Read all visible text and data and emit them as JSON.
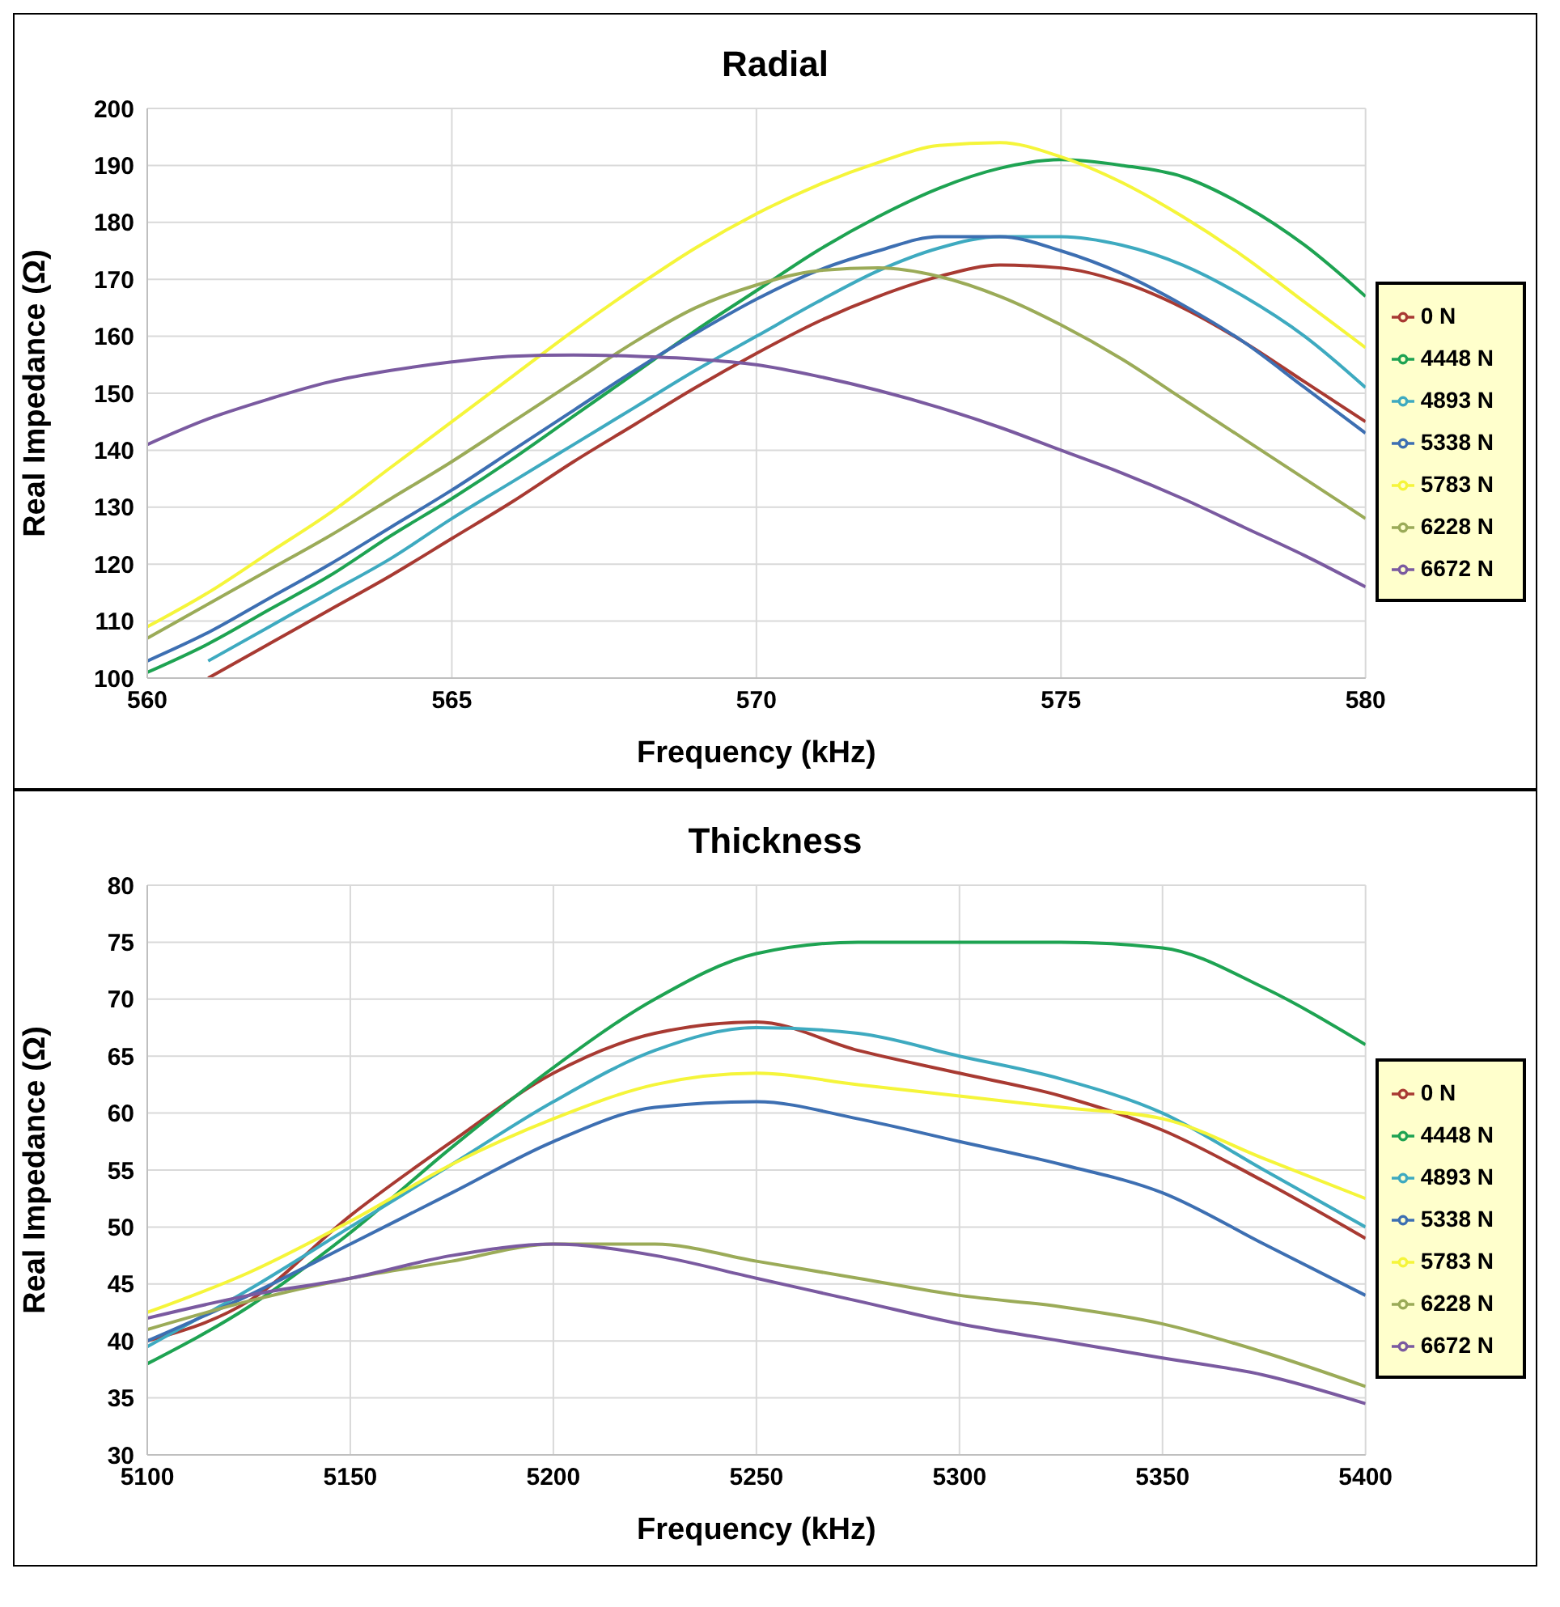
{
  "chart_data": [
    {
      "type": "line",
      "title": "Radial",
      "xlabel": "Frequency (kHz)",
      "ylabel": "Real Impedance (Ω)",
      "x": [
        560,
        561,
        562,
        563,
        564,
        565,
        566,
        567,
        568,
        569,
        570,
        571,
        572,
        573,
        574,
        575,
        576,
        577,
        578,
        579,
        580
      ],
      "xlim": [
        560,
        580
      ],
      "xticks": [
        560,
        565,
        570,
        575,
        580
      ],
      "ylim": [
        100,
        200
      ],
      "yticks": [
        100,
        110,
        120,
        130,
        140,
        150,
        160,
        170,
        180,
        190,
        200
      ],
      "grid": true,
      "legend": "right",
      "marker": "none",
      "line_style": "solid",
      "series": [
        {
          "name": "0 N",
          "color": "#a83a32",
          "values": [
            null,
            100,
            106,
            112,
            118,
            124.5,
            131,
            138,
            144.5,
            151,
            157,
            162.5,
            167,
            170.5,
            172.5,
            172,
            169.5,
            165,
            159,
            152,
            145
          ]
        },
        {
          "name": "4448 N",
          "color": "#1ea352",
          "values": [
            101,
            106,
            112,
            118,
            125,
            131.5,
            138.5,
            146,
            153.5,
            161,
            168,
            175,
            181,
            186,
            189.5,
            191,
            190,
            188,
            183,
            176,
            167
          ]
        },
        {
          "name": "4893 N",
          "color": "#3eaac0",
          "values": [
            null,
            103,
            109,
            115,
            121,
            128,
            134.5,
            141,
            147.5,
            154,
            160,
            166,
            171.5,
            175.5,
            177.5,
            177.5,
            176,
            172.5,
            167,
            160,
            151
          ]
        },
        {
          "name": "5338 N",
          "color": "#3d6fb2",
          "values": [
            103,
            108,
            114,
            120,
            126.5,
            133,
            140,
            147,
            154,
            160.5,
            166.5,
            171.5,
            175,
            177.5,
            177.5,
            175,
            171,
            165.5,
            159,
            151,
            143
          ]
        },
        {
          "name": "5783 N",
          "color": "#f5f53a",
          "values": [
            109,
            115,
            122,
            129,
            137,
            145,
            153,
            161,
            168.5,
            175.5,
            181.5,
            186.5,
            190.5,
            193.5,
            194,
            191.5,
            187,
            181,
            174,
            166,
            158
          ]
        },
        {
          "name": "6228 N",
          "color": "#9bab58",
          "values": [
            107,
            113,
            119,
            125,
            131.5,
            138,
            145,
            152,
            159,
            165,
            169,
            171.5,
            172,
            170.5,
            167,
            162,
            156,
            149,
            142,
            135,
            128
          ]
        },
        {
          "name": "6672 N",
          "color": "#7a5aa0",
          "values": [
            141,
            145.5,
            149,
            152,
            154,
            155.5,
            156.5,
            156.7,
            156.5,
            156,
            155,
            153,
            150.5,
            147.5,
            144,
            140,
            136,
            131.5,
            126.5,
            121.5,
            116
          ]
        }
      ]
    },
    {
      "type": "line",
      "title": "Thickness",
      "xlabel": "Frequency (kHz)",
      "ylabel": "Real Impedance (Ω)",
      "x": [
        5100,
        5125,
        5150,
        5175,
        5200,
        5225,
        5250,
        5275,
        5300,
        5325,
        5350,
        5375,
        5400
      ],
      "xlim": [
        5100,
        5400
      ],
      "xticks": [
        5100,
        5150,
        5200,
        5250,
        5300,
        5350,
        5400
      ],
      "ylim": [
        30,
        80
      ],
      "yticks": [
        30,
        35,
        40,
        45,
        50,
        55,
        60,
        65,
        70,
        75,
        80
      ],
      "grid": true,
      "legend": "right",
      "marker": "none",
      "line_style": "solid",
      "series": [
        {
          "name": "0 N",
          "color": "#a83a32",
          "values": [
            40,
            43.5,
            51,
            57.5,
            63.5,
            67,
            68,
            65.5,
            63.5,
            61.5,
            58.5,
            54,
            49
          ]
        },
        {
          "name": "4448 N",
          "color": "#1ea352",
          "values": [
            38,
            43,
            49.5,
            57,
            64,
            70,
            74,
            75,
            75,
            75,
            74.5,
            71,
            66
          ]
        },
        {
          "name": "4893 N",
          "color": "#3eaac0",
          "values": [
            39.5,
            44.5,
            50,
            55.5,
            61,
            65.5,
            67.5,
            67,
            65,
            63,
            60,
            55,
            50
          ]
        },
        {
          "name": "5338 N",
          "color": "#3d6fb2",
          "values": [
            40,
            44,
            48.5,
            53,
            57.5,
            60.5,
            61,
            59.5,
            57.5,
            55.5,
            53,
            48.5,
            44
          ]
        },
        {
          "name": "5783 N",
          "color": "#f5f53a",
          "values": [
            42.5,
            46,
            50.5,
            55.5,
            59.5,
            62.5,
            63.5,
            62.5,
            61.5,
            60.5,
            59.5,
            56,
            52.5
          ]
        },
        {
          "name": "6228 N",
          "color": "#9bab58",
          "values": [
            41,
            43.5,
            45.5,
            47,
            48.5,
            48.5,
            47,
            45.5,
            44,
            43,
            41.5,
            39,
            36
          ]
        },
        {
          "name": "6672 N",
          "color": "#7a5aa0",
          "values": [
            42,
            44,
            45.5,
            47.5,
            48.5,
            47.5,
            45.5,
            43.5,
            41.5,
            40,
            38.5,
            37,
            34.5
          ]
        }
      ]
    }
  ]
}
